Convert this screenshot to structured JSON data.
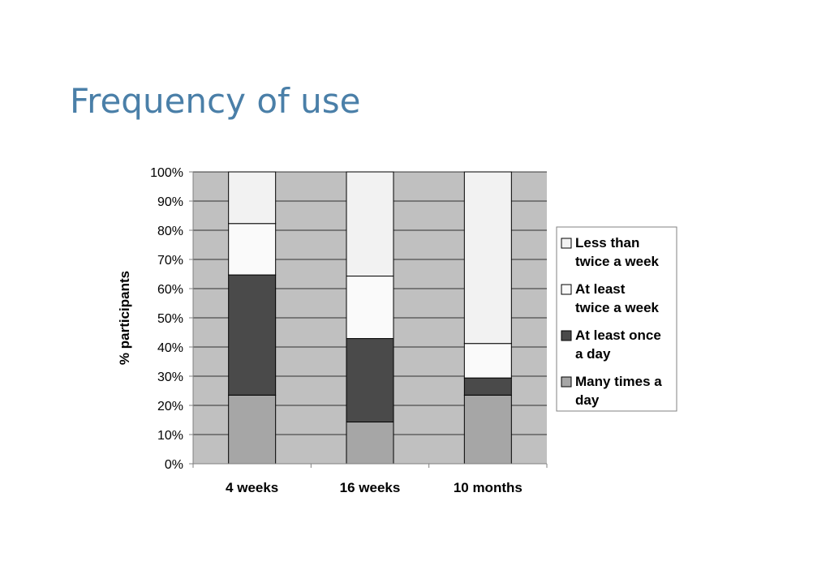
{
  "slide": {
    "title": "Frequency of use"
  },
  "chart_data": {
    "type": "bar",
    "stacked": true,
    "title": "",
    "xlabel": "",
    "ylabel": "% participants",
    "ylim": [
      0,
      100
    ],
    "y_ticks": [
      "0%",
      "10%",
      "20%",
      "30%",
      "40%",
      "50%",
      "60%",
      "70%",
      "80%",
      "90%",
      "100%"
    ],
    "categories": [
      "4 weeks",
      "16 weeks",
      "10 months"
    ],
    "series": [
      {
        "name": "Many times a day",
        "values": [
          23.5,
          14.3,
          23.5
        ],
        "color": "#a6a6a6"
      },
      {
        "name": "At least once a day",
        "values": [
          41.2,
          28.6,
          5.9
        ],
        "color": "#4a4a4a"
      },
      {
        "name": "At least twice a week",
        "values": [
          17.6,
          21.4,
          11.8
        ],
        "color": "#fafafa"
      },
      {
        "name": "Less than twice a week",
        "values": [
          17.7,
          35.7,
          58.8
        ],
        "color": "#f2f2f2"
      }
    ],
    "plot_background": "#c0c0c0",
    "grid": true,
    "legend_position": "right",
    "legend_entries": [
      {
        "lines": [
          "Less than",
          "twice a week"
        ],
        "color": "#f2f2f2"
      },
      {
        "lines": [
          "At least",
          "twice a week"
        ],
        "color": "#fafafa"
      },
      {
        "lines": [
          "At least once",
          "a day"
        ],
        "color": "#4a4a4a"
      },
      {
        "lines": [
          "Many times a",
          "day"
        ],
        "color": "#a6a6a6"
      }
    ]
  }
}
